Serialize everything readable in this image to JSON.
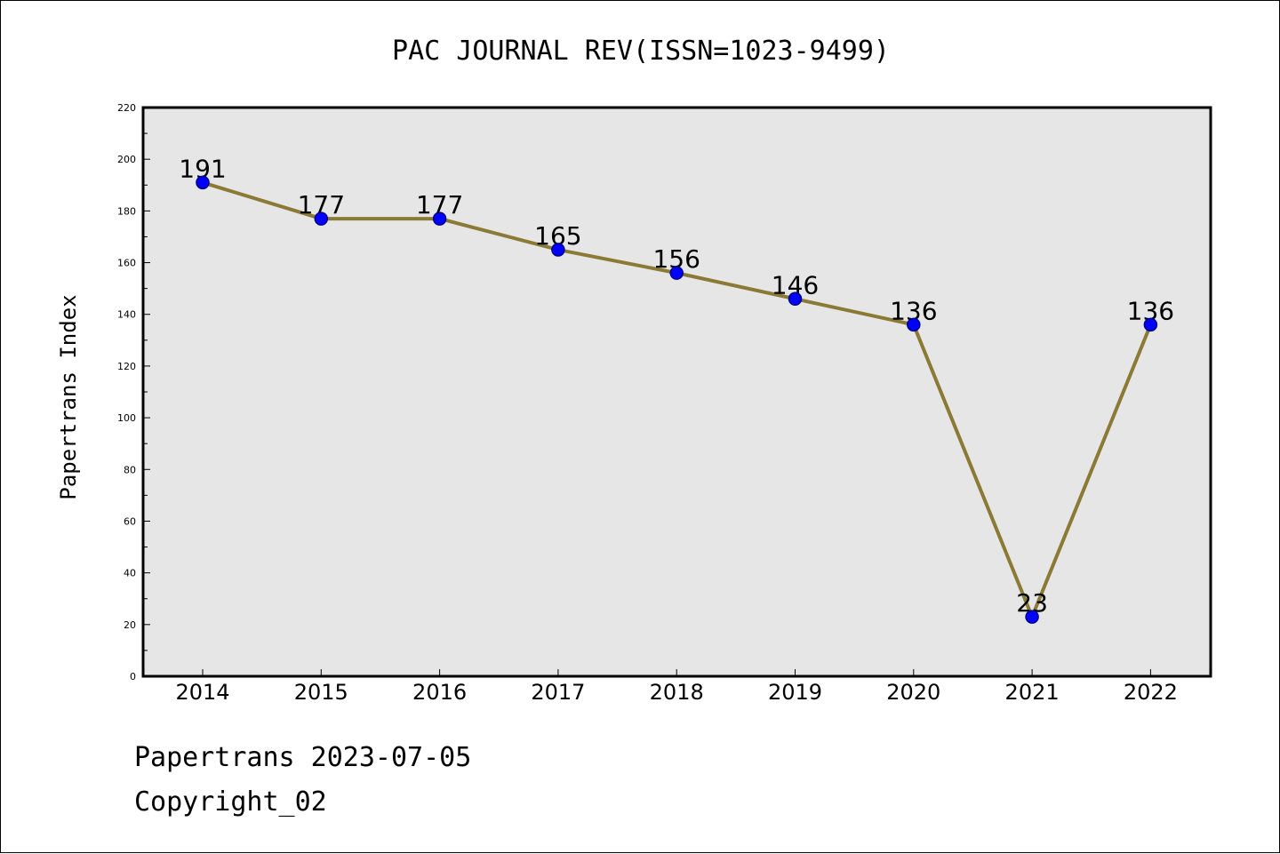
{
  "chart_data": {
    "type": "line",
    "title": "PAC JOURNAL REV(ISSN=1023-9499)",
    "xlabel": "",
    "ylabel": "Papertrans Index",
    "categories": [
      "2014",
      "2015",
      "2016",
      "2017",
      "2018",
      "2019",
      "2020",
      "2021",
      "2022"
    ],
    "series": [
      {
        "values": [
          191,
          177,
          177,
          165,
          156,
          146,
          136,
          23,
          136
        ],
        "data_labels": [
          "191",
          "177",
          "177",
          "165",
          "156",
          "146",
          "136",
          "23",
          "136"
        ]
      }
    ],
    "ylim": [
      0,
      220
    ],
    "yticks": [
      "0",
      "20",
      "40",
      "60",
      "80",
      "100",
      "120",
      "140",
      "160",
      "180",
      "200",
      "220"
    ],
    "grid": false,
    "legend": "none",
    "colors": {
      "line": "#8b7a35",
      "marker_fill": "#0000ff",
      "marker_edge": "#00008b",
      "plot_background": "#e6e6e6"
    }
  },
  "footer": {
    "line1": "Papertrans 2023-07-05",
    "line2": "Copyright_02"
  }
}
